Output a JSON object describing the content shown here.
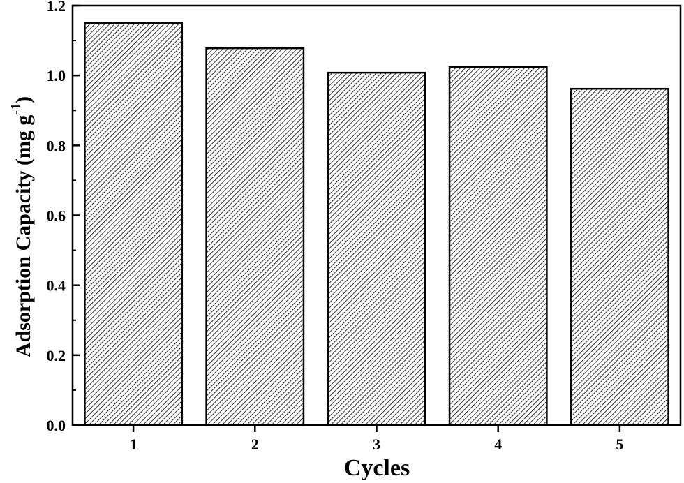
{
  "chart_data": {
    "type": "bar",
    "categories": [
      "1",
      "2",
      "3",
      "4",
      "5"
    ],
    "values": [
      1.15,
      1.078,
      1.008,
      1.024,
      0.962
    ],
    "title": "",
    "xlabel": "Cycles",
    "ylabel": {
      "main": "Adsorption Capacity (mg g",
      "superscript": "-1",
      "close": ")"
    },
    "ylim": [
      0,
      1.2
    ],
    "yticks": [
      "0.0",
      "0.2",
      "0.4",
      "0.6",
      "0.8",
      "1.0",
      "1.2"
    ],
    "bar_fill": "hatched-diagonal",
    "grid": false,
    "legend": "none",
    "colors": {
      "bar_hatch": "#000000",
      "bar_background": "#ffffff",
      "axis": "#000000"
    }
  }
}
